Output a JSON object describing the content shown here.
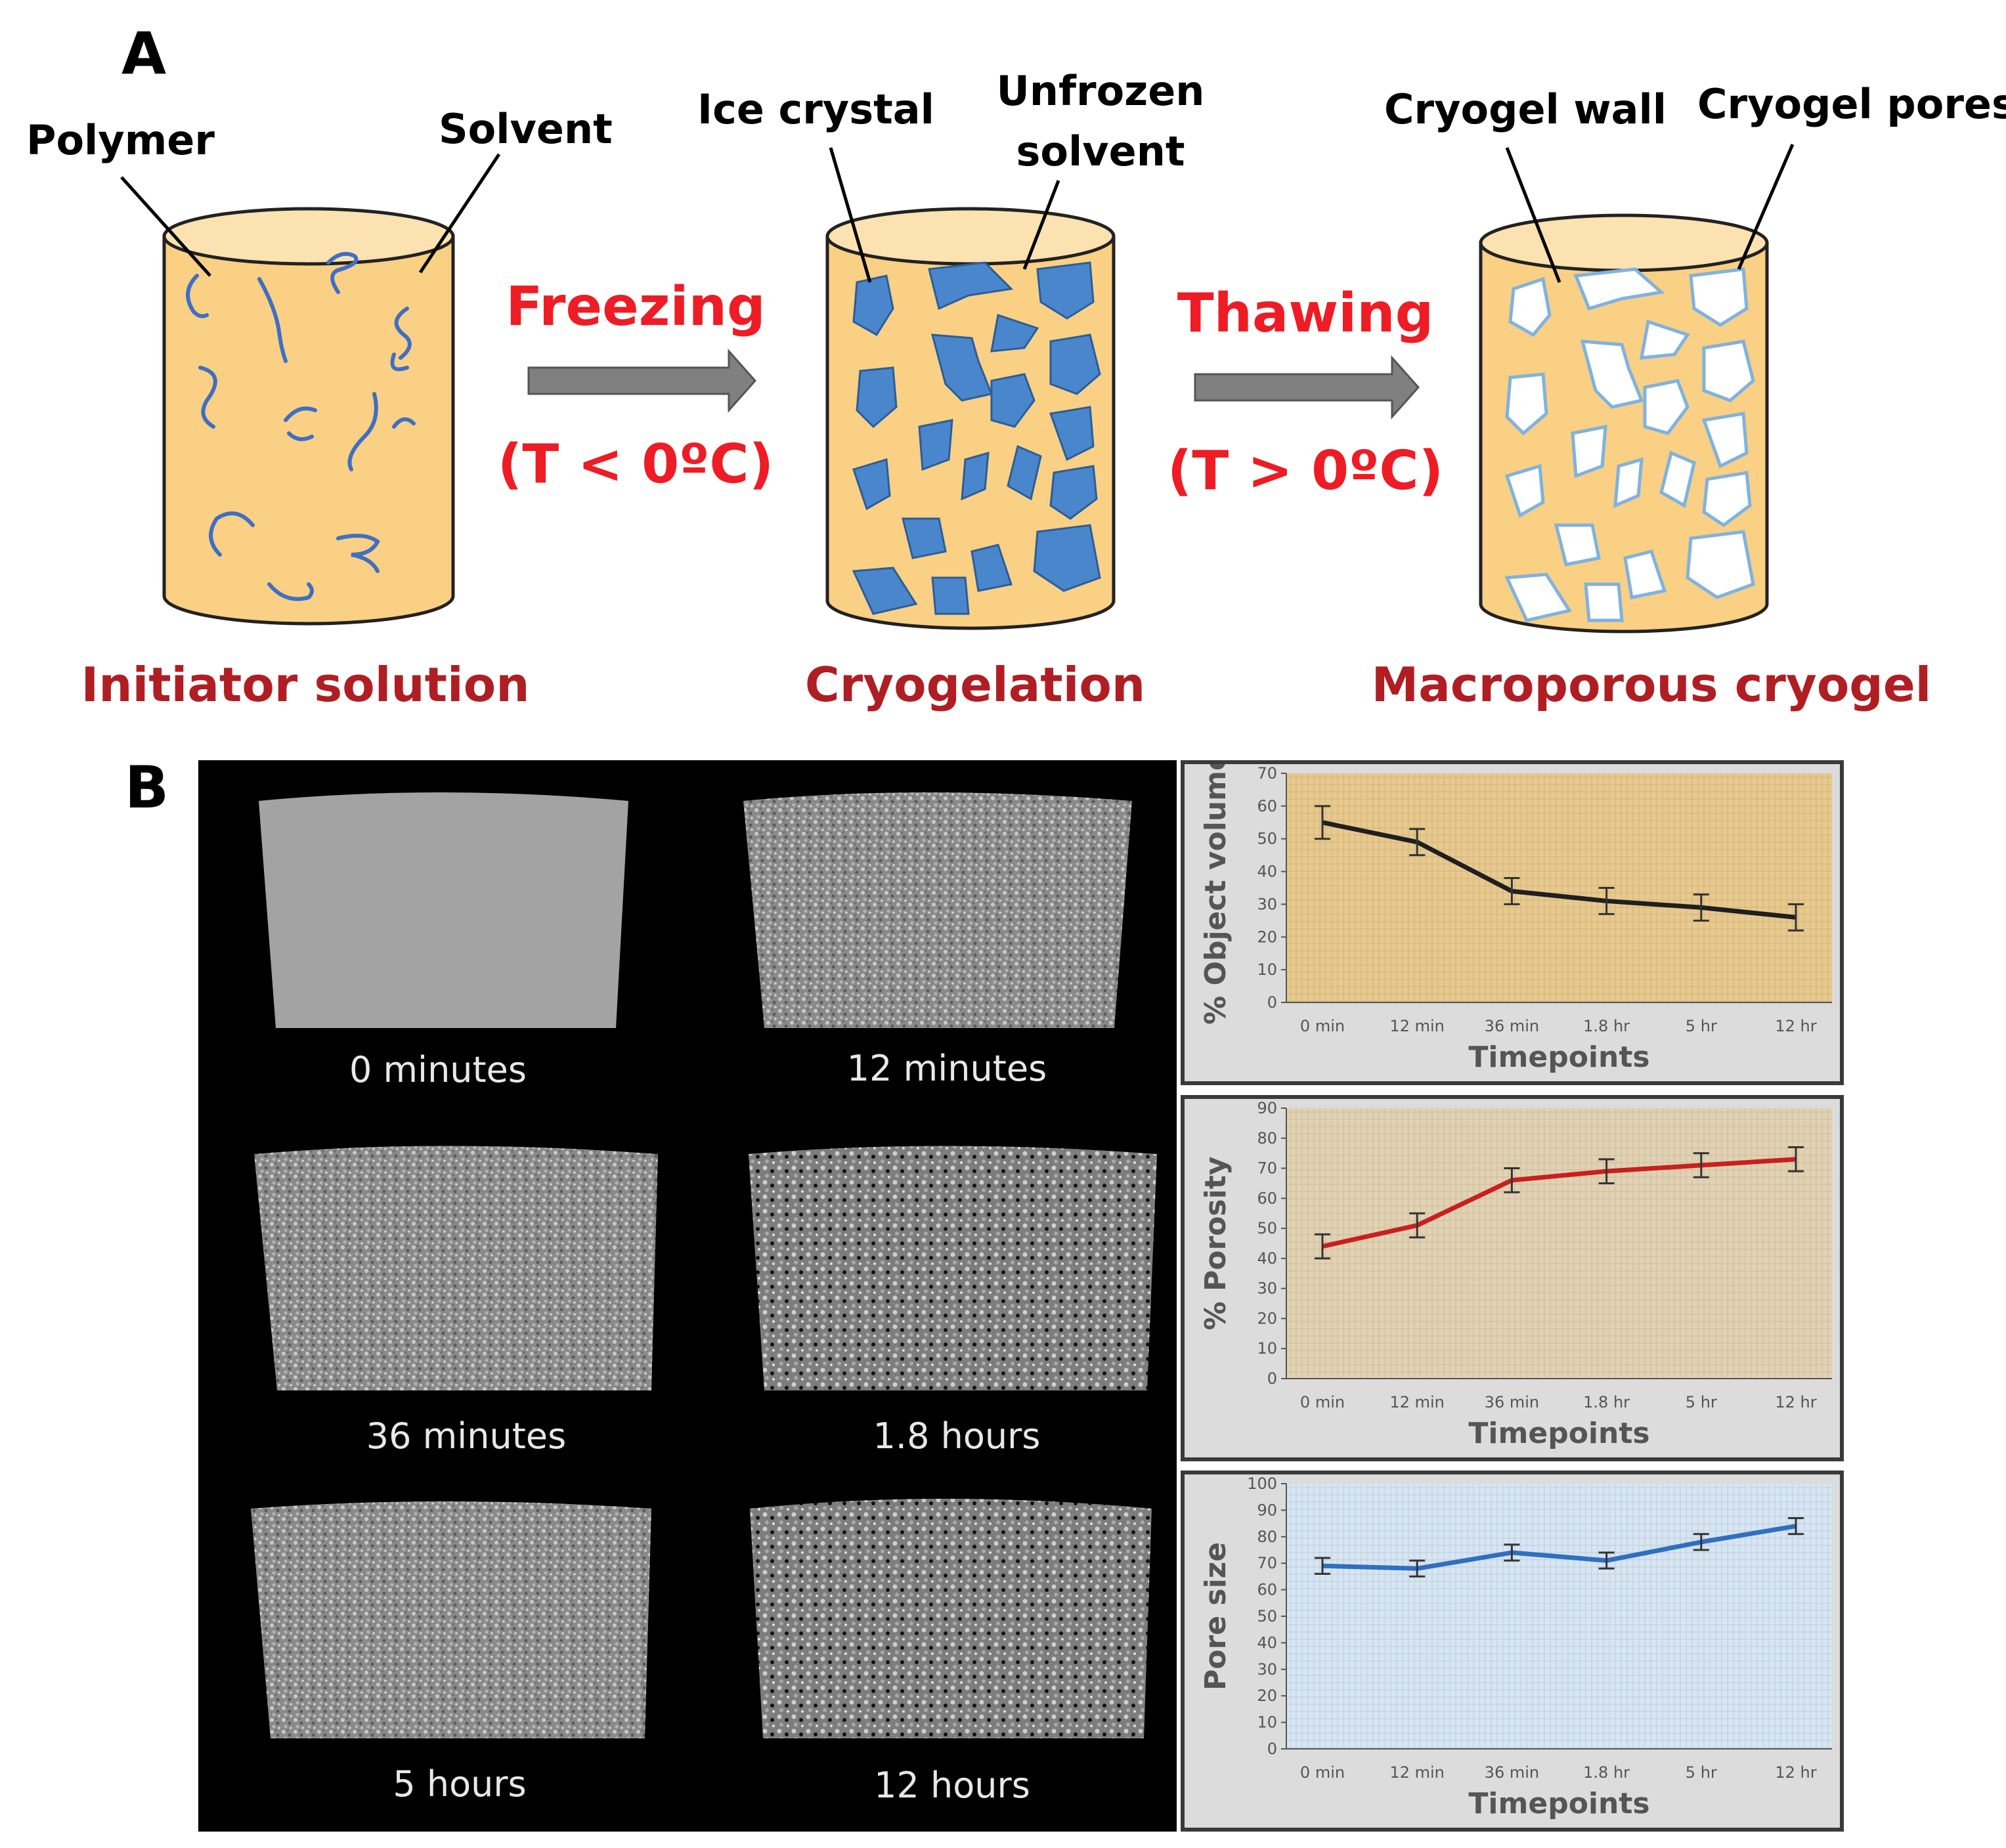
{
  "panel_a": {
    "letter": "A",
    "left_stage": {
      "caption": "Initiator solution",
      "callouts": [
        "Polymer",
        "Solvent"
      ]
    },
    "arrow_1": {
      "label": "Freezing",
      "condition": "(T < 0ºC)"
    },
    "middle_stage": {
      "caption": "Cryogelation",
      "callouts": [
        "Ice crystal",
        "Unfrozen",
        "solvent"
      ]
    },
    "arrow_2": {
      "label": "Thawing",
      "condition": "(T > 0ºC)"
    },
    "right_stage": {
      "caption": "Macroporous cryogel",
      "callouts": [
        "Cryogel wall",
        "Cryogel pores"
      ]
    },
    "colors": {
      "cylinder_fill": "#f9d084",
      "cylinder_top": "#fbe2b0",
      "polymer": "#3f6fc4",
      "ice": "#4a86cc",
      "pore_fill": "#ffffff",
      "pore_edge": "#7fb2e0",
      "caption_red": "#b01e23",
      "arrow_label_red": "#ee1c24",
      "arrow_gray": "#808080"
    }
  },
  "panel_b": {
    "letter": "B",
    "scans": [
      {
        "label": "0 minutes"
      },
      {
        "label": "12 minutes"
      },
      {
        "label": "36 minutes"
      },
      {
        "label": "1.8 hours"
      },
      {
        "label": "5 hours"
      },
      {
        "label": "12 hours"
      }
    ]
  },
  "chart_data": [
    {
      "type": "line",
      "categories": [
        "0 min",
        "12 min",
        "36 min",
        "1.8 hr",
        "5 hr",
        "12 hr"
      ],
      "series": [
        {
          "values": [
            55,
            49,
            34,
            31,
            29,
            26
          ],
          "error": [
            5,
            4,
            4,
            4,
            4,
            4
          ],
          "color": "#1f1f1f"
        }
      ],
      "xlabel": "Timepoints",
      "ylabel": "% Object volume",
      "ylim": [
        0,
        70
      ],
      "yticks": [
        0,
        10,
        20,
        30,
        40,
        50,
        60,
        70
      ],
      "background": "#e8c98e"
    },
    {
      "type": "line",
      "categories": [
        "0 min",
        "12 min",
        "36 min",
        "1.8 hr",
        "5 hr",
        "12 hr"
      ],
      "series": [
        {
          "values": [
            44,
            51,
            66,
            69,
            71,
            73
          ],
          "error": [
            4,
            4,
            4,
            4,
            4,
            4
          ],
          "color": "#c8201e"
        }
      ],
      "xlabel": "Timepoints",
      "ylabel": "% Porosity",
      "ylim": [
        0,
        90
      ],
      "yticks": [
        0,
        10,
        20,
        30,
        40,
        50,
        60,
        70,
        80,
        90
      ],
      "background": "#e2d2b4"
    },
    {
      "type": "line",
      "categories": [
        "0 min",
        "12 min",
        "36 min",
        "1.8 hr",
        "5 hr",
        "12 hr"
      ],
      "series": [
        {
          "values": [
            69,
            68,
            74,
            71,
            78,
            84
          ],
          "error": [
            3,
            3,
            3,
            3,
            3,
            3
          ],
          "color": "#2f6fc0"
        }
      ],
      "xlabel": "Timepoints",
      "ylabel": "Pore size",
      "ylim": [
        0,
        100
      ],
      "yticks": [
        0,
        10,
        20,
        30,
        40,
        50,
        60,
        70,
        80,
        90,
        100
      ],
      "background": "#d6e6f5"
    }
  ]
}
